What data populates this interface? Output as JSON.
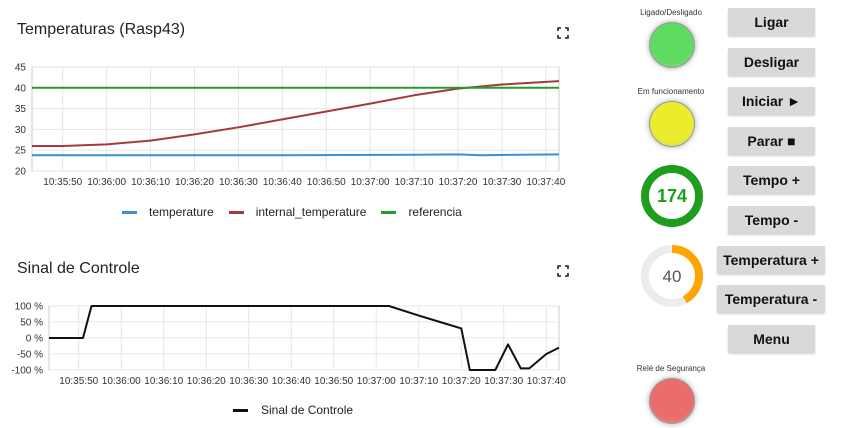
{
  "temp_panel": {
    "title": "Temperaturas (Rasp43)",
    "y_ticks": [
      "45",
      "40",
      "35",
      "30",
      "25",
      "20"
    ],
    "x_ticks": [
      "10:35:50",
      "10:36:00",
      "10:36:10",
      "10:36:20",
      "10:36:30",
      "10:36:40",
      "10:36:50",
      "10:37:00",
      "10:37:10",
      "10:37:20",
      "10:37:30",
      "10:37:40"
    ]
  },
  "control_panel": {
    "title": "Sinal de Controle",
    "y_ticks": [
      "100 %",
      "50 %",
      "0 %",
      "-50 %",
      "-100 %"
    ],
    "x_ticks": [
      "10:35:50",
      "10:36:00",
      "10:36:10",
      "10:36:20",
      "10:36:30",
      "10:36:40",
      "10:36:50",
      "10:37:00",
      "10:37:10",
      "10:37:20",
      "10:37:30",
      "10:37:40"
    ]
  },
  "chart_data": [
    {
      "type": "line",
      "title": "Temperaturas (Rasp43)",
      "ylim": [
        20,
        45
      ],
      "x_range": [
        "10:35:43",
        "10:37:43"
      ],
      "legend_position": "bottom",
      "series": [
        {
          "name": "temperature",
          "color": "#3a8fd6",
          "x": [
            "10:35:43",
            "10:36:10",
            "10:36:40",
            "10:37:10",
            "10:37:20",
            "10:37:25",
            "10:37:43"
          ],
          "values": [
            23.8,
            23.8,
            23.8,
            23.9,
            24.0,
            23.8,
            24.0
          ]
        },
        {
          "name": "internal_temperature",
          "color": "#a33b3b",
          "x": [
            "10:35:43",
            "10:35:50",
            "10:36:00",
            "10:36:10",
            "10:36:20",
            "10:36:30",
            "10:36:40",
            "10:36:50",
            "10:37:00",
            "10:37:10",
            "10:37:20",
            "10:37:30",
            "10:37:43"
          ],
          "values": [
            26.0,
            26.0,
            26.4,
            27.3,
            28.8,
            30.5,
            32.4,
            34.3,
            36.2,
            38.2,
            39.8,
            40.8,
            41.6
          ]
        },
        {
          "name": "referencia",
          "color": "#2a9a2a",
          "x": [
            "10:35:43",
            "10:37:43"
          ],
          "values": [
            40,
            40
          ]
        }
      ]
    },
    {
      "type": "line",
      "title": "Sinal de Controle",
      "ylim": [
        -100,
        100
      ],
      "x_range": [
        "10:35:43",
        "10:37:43"
      ],
      "legend_position": "bottom",
      "series": [
        {
          "name": "Sinal de Controle",
          "color": "#111111",
          "x": [
            "10:35:43",
            "10:35:51",
            "10:35:53",
            "10:37:03",
            "10:37:10",
            "10:37:15",
            "10:37:20",
            "10:37:22",
            "10:37:28",
            "10:37:31",
            "10:37:34",
            "10:37:36",
            "10:37:40",
            "10:37:43"
          ],
          "values": [
            0,
            0,
            100,
            100,
            70,
            50,
            30,
            -100,
            -100,
            -20,
            -95,
            -95,
            -50,
            -30
          ]
        }
      ]
    }
  ],
  "status": {
    "power_label": "Ligado/Desligado",
    "running_label": "Em funcionamento",
    "safety_label": "Relé de Segurança",
    "power_color": "#5fdc5f",
    "running_color": "#ecec2c",
    "safety_color": "#ec6b6b"
  },
  "gauges": {
    "time_value": "174",
    "time_color": "#1e9e1e",
    "time_fill": 1.0,
    "temp_value": "40",
    "temp_color": "#ffa500",
    "temp_fill": 0.42
  },
  "buttons": {
    "ligar": "Ligar",
    "desligar": "Desligar",
    "iniciar": "Iniciar ►",
    "parar": "Parar ■",
    "tempo_plus": "Tempo +",
    "tempo_minus": "Tempo -",
    "temperatura_plus": "Temperatura +",
    "temperatura_minus": "Temperatura -",
    "menu": "Menu"
  }
}
